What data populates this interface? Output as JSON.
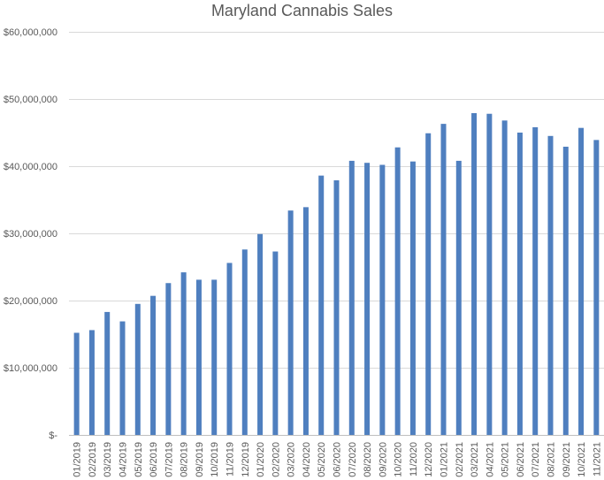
{
  "chart_data": {
    "type": "bar",
    "title": "Maryland Cannabis Sales",
    "xlabel": "",
    "ylabel": "",
    "ylim": [
      0,
      60000000
    ],
    "yticks": [
      0,
      10000000,
      20000000,
      30000000,
      40000000,
      50000000,
      60000000
    ],
    "ytick_labels": [
      "$-",
      "$10,000,000",
      "$20,000,000",
      "$30,000,000",
      "$40,000,000",
      "$50,000,000",
      "$60,000,000"
    ],
    "grid": true,
    "legend": "none",
    "bar_color": "#4F7FBF",
    "categories": [
      "01/2019",
      "02/2019",
      "03/2019",
      "04/2019",
      "05/2019",
      "06/2019",
      "07/2019",
      "08/2019",
      "09/2019",
      "10/2019",
      "11/2019",
      "12/2019",
      "01/2020",
      "02/2020",
      "03/2020",
      "04/2020",
      "05/2020",
      "06/2020",
      "07/2020",
      "08/2020",
      "09/2020",
      "10/2020",
      "11/2020",
      "12/2020",
      "01/2021",
      "02/2021",
      "03/2021",
      "04/2021",
      "05/2021",
      "06/2021",
      "07/2021",
      "08/2021",
      "09/2021",
      "10/2021",
      "11/2021"
    ],
    "values": [
      15200000,
      15600000,
      18300000,
      16900000,
      19500000,
      20700000,
      22600000,
      24200000,
      23100000,
      23100000,
      25600000,
      27600000,
      29900000,
      27300000,
      33400000,
      33900000,
      38600000,
      37900000,
      40800000,
      40500000,
      40200000,
      42800000,
      40700000,
      44900000,
      46300000,
      40800000,
      47900000,
      47800000,
      46800000,
      45000000,
      45800000,
      44500000,
      42900000,
      45700000,
      43900000
    ]
  }
}
